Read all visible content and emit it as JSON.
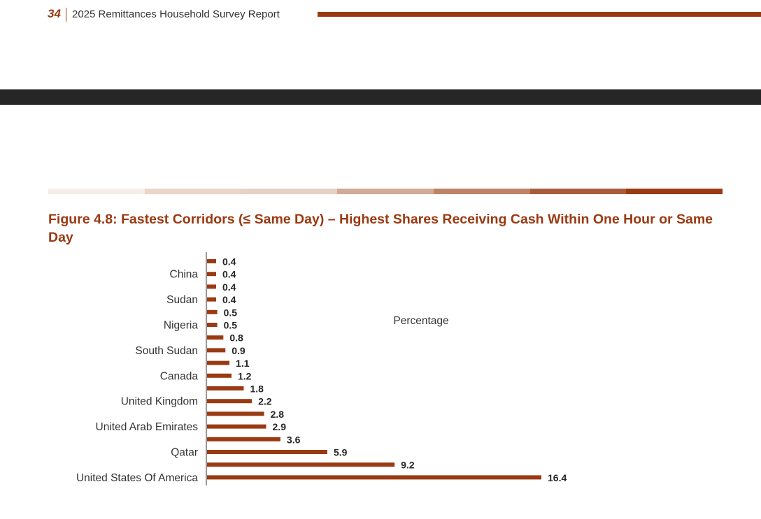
{
  "header": {
    "page_number": "34",
    "report_title": "2025 Remittances Household Survey Report"
  },
  "colors": {
    "accent": "#9a3a12",
    "dark_band": "#262626",
    "gradient_segments": [
      "#f7ede8",
      "#ecd5c9",
      "#e7d2c8",
      "#d2ab98",
      "#bd8268",
      "#a95c3c",
      "#9a3a12"
    ]
  },
  "figure": {
    "title": "Figure 4.8: Fastest Corridors (≤ Same Day) – Highest Shares Receiving Cash Within One Hour or Same Day"
  },
  "chart_data": {
    "type": "bar",
    "orientation": "horizontal",
    "ylabel_positions_note": "Only every second category label is printed on the axis",
    "categories": [
      "",
      "China",
      "",
      "Sudan",
      "",
      "Nigeria",
      "",
      "South Sudan",
      "",
      "Canada",
      "",
      "United Kingdom",
      "",
      "United Arab Emirates",
      "",
      "Qatar",
      "",
      "United States Of America"
    ],
    "values": [
      0.4,
      0.4,
      0.4,
      0.4,
      0.5,
      0.5,
      0.8,
      0.9,
      1.1,
      1.2,
      1.8,
      2.2,
      2.8,
      2.9,
      3.6,
      5.9,
      9.2,
      16.4
    ],
    "value_labels": [
      "0.4",
      "0.4",
      "0.4",
      "0.4",
      "0.5",
      "0.5",
      "0.8",
      "0.9",
      "1.1",
      "1.2",
      "1.8",
      "2.2",
      "2.8",
      "2.9",
      "3.6",
      "5.9",
      "9.2",
      "16.4"
    ],
    "xlabel": "Percentage",
    "bar_color": "#9a3a12",
    "grid": false,
    "legend": "none"
  }
}
